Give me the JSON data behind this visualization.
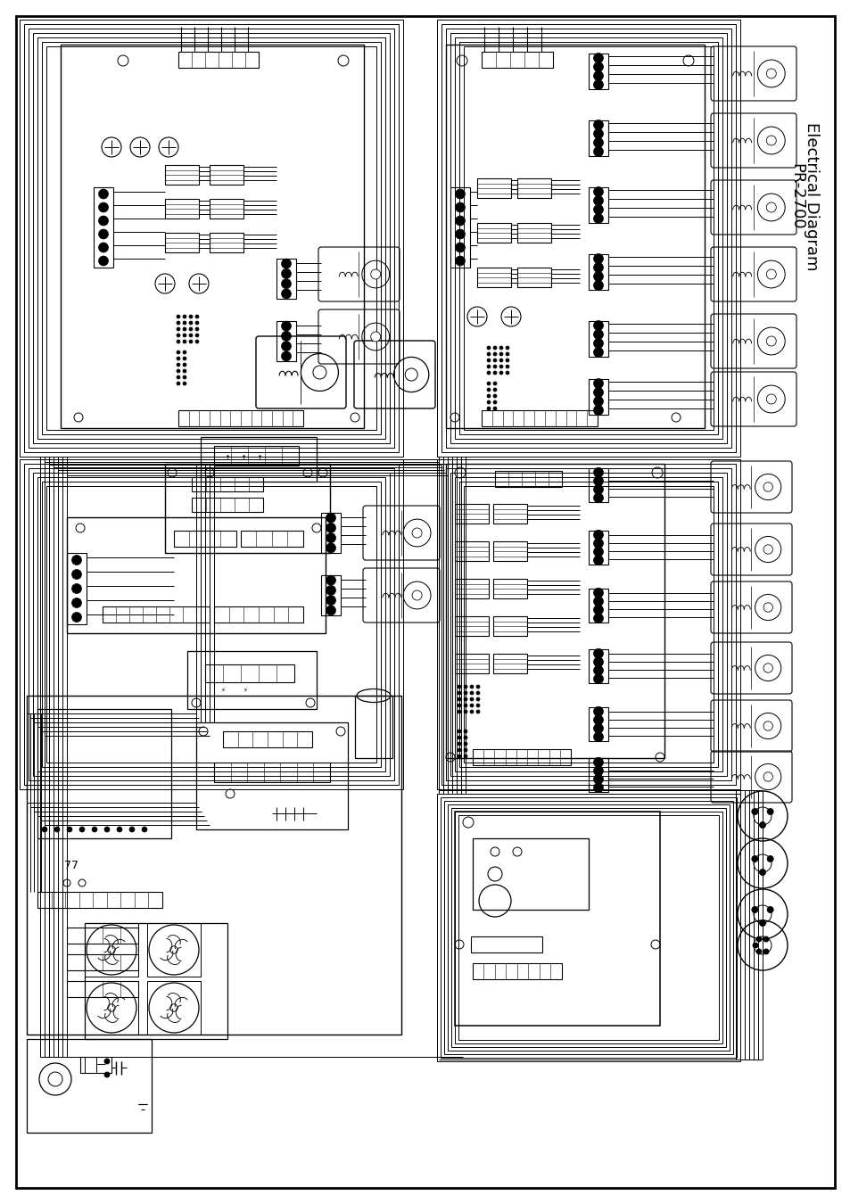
{
  "title_line1": "Electrical Diagram",
  "title_line2": "PR-2700",
  "bg_color": "#ffffff",
  "line_color": "#000000",
  "title_fontsize": 13
}
